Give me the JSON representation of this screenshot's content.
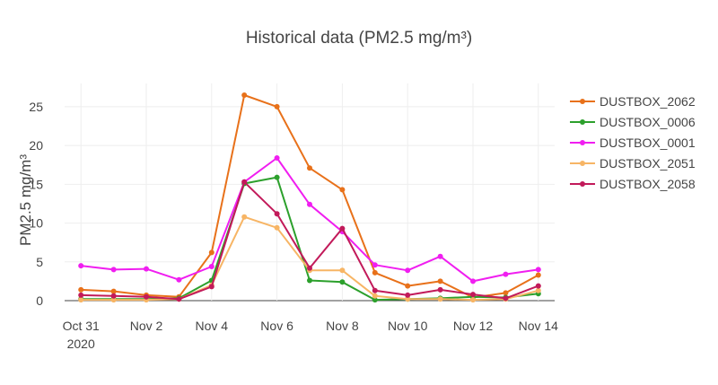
{
  "chart_data": {
    "type": "line",
    "title": "Historical data (PM2.5 mg/m³)",
    "xlabel": "",
    "ylabel": "PM2.5 mg/m³",
    "ylim": [
      0,
      28
    ],
    "xrange": [
      "2020-10-30T12:00",
      "2020-11-14T12:00"
    ],
    "yticks": [
      0,
      5,
      10,
      15,
      20,
      25
    ],
    "xticks": [
      {
        "date": "2020-10-31",
        "label": "Oct 31",
        "sublabel": "2020"
      },
      {
        "date": "2020-11-02",
        "label": "Nov 2"
      },
      {
        "date": "2020-11-04",
        "label": "Nov 4"
      },
      {
        "date": "2020-11-06",
        "label": "Nov 6"
      },
      {
        "date": "2020-11-08",
        "label": "Nov 8"
      },
      {
        "date": "2020-11-10",
        "label": "Nov 10"
      },
      {
        "date": "2020-11-12",
        "label": "Nov 12"
      },
      {
        "date": "2020-11-14",
        "label": "Nov 14"
      }
    ],
    "grid": true,
    "legend_position": "top-right",
    "x": [
      "2020-10-31",
      "2020-11-01",
      "2020-11-02",
      "2020-11-03",
      "2020-11-04",
      "2020-11-05",
      "2020-11-06",
      "2020-11-07",
      "2020-11-08",
      "2020-11-09",
      "2020-11-10",
      "2020-11-11",
      "2020-11-12",
      "2020-11-13",
      "2020-11-14"
    ],
    "series": [
      {
        "name": "DUSTBOX_2062",
        "color": "#e8711a",
        "values": [
          1.4,
          1.2,
          0.7,
          0.5,
          6.2,
          26.5,
          25.0,
          17.1,
          14.3,
          3.6,
          1.9,
          2.5,
          0.4,
          1.0,
          3.3
        ]
      },
      {
        "name": "DUSTBOX_0006",
        "color": "#2ca02c",
        "values": [
          0.2,
          0.2,
          0.2,
          0.3,
          2.6,
          15.1,
          15.9,
          2.6,
          2.4,
          0.1,
          0.2,
          0.3,
          0.5,
          0.4,
          0.9
        ]
      },
      {
        "name": "DUSTBOX_0001",
        "color": "#f01ef0",
        "values": [
          4.5,
          4.0,
          4.1,
          2.7,
          4.4,
          15.3,
          18.4,
          12.4,
          8.9,
          4.6,
          3.9,
          5.7,
          2.5,
          3.4,
          4.0
        ]
      },
      {
        "name": "DUSTBOX_2051",
        "color": "#f7b565",
        "values": [
          0.1,
          0.1,
          0.1,
          0.2,
          2.0,
          10.8,
          9.4,
          3.9,
          3.9,
          0.6,
          0.2,
          0.2,
          0.1,
          0.2,
          1.3
        ]
      },
      {
        "name": "DUSTBOX_2058",
        "color": "#c21a5a",
        "values": [
          0.7,
          0.6,
          0.5,
          0.2,
          1.8,
          15.3,
          11.2,
          4.2,
          9.3,
          1.3,
          0.7,
          1.4,
          0.8,
          0.3,
          1.9
        ]
      }
    ]
  }
}
